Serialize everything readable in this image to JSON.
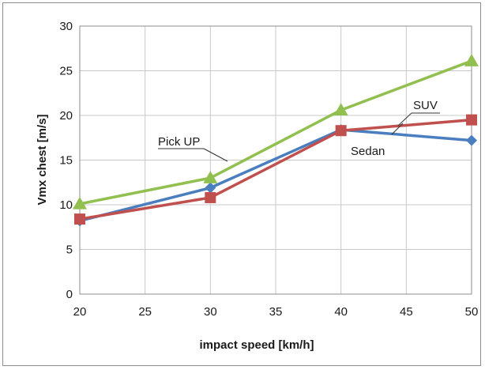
{
  "chart_data": {
    "type": "line",
    "xlabel": "impact speed [km/h]",
    "ylabel": "Vmx chest [m/s]",
    "xlim": [
      20,
      50
    ],
    "ylim": [
      0,
      30
    ],
    "xticks": [
      20,
      25,
      30,
      35,
      40,
      45,
      50
    ],
    "yticks": [
      0,
      5,
      10,
      15,
      20,
      25,
      30
    ],
    "grid": true,
    "x": [
      20,
      30,
      40,
      50
    ],
    "series": [
      {
        "name": "SUV",
        "values": [
          8.2,
          11.9,
          18.4,
          17.2
        ],
        "color": "#4a7ebf",
        "marker": "diamond"
      },
      {
        "name": "Pick UP",
        "values": [
          10.1,
          13.0,
          20.6,
          26.1
        ],
        "color": "#92c050",
        "marker": "triangle"
      },
      {
        "name": "Sedan",
        "values": [
          8.4,
          10.8,
          18.3,
          19.5
        ],
        "color": "#c0504d",
        "marker": "square"
      }
    ]
  }
}
